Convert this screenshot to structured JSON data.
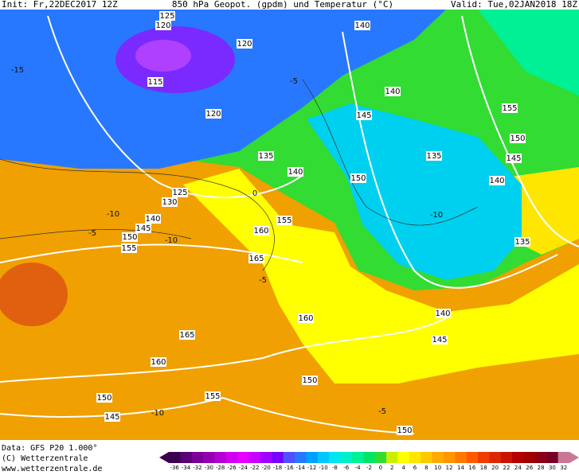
{
  "header": {
    "init": "Init: Fr,22DEC2017 12Z",
    "title": "850 hPa Geopot. (gpdm) und Temperatur (°C)",
    "valid": "Valid: Tue,02JAN2018 18Z"
  },
  "map": {
    "geopotential_labels": [
      125,
      120,
      140,
      120,
      115,
      140,
      155,
      120,
      145,
      150,
      135,
      145,
      140,
      135,
      150,
      140,
      125,
      130,
      140,
      155,
      145,
      160,
      150,
      135,
      155,
      165,
      140,
      160,
      145,
      165,
      160,
      150,
      150,
      155,
      145,
      150
    ],
    "temperature_labels": [
      -15,
      -5,
      -10,
      -5,
      -10,
      -5,
      -10,
      -5,
      0,
      -10
    ]
  },
  "legend": {
    "labels": [
      -36,
      -34,
      -32,
      -30,
      -28,
      -26,
      -24,
      -22,
      -20,
      -18,
      -16,
      -14,
      -12,
      -10,
      -8,
      -6,
      -4,
      -2,
      0,
      2,
      4,
      6,
      8,
      10,
      12,
      14,
      16,
      18,
      20,
      22,
      24,
      26,
      28,
      30,
      32
    ],
    "colors": [
      "#3c0050",
      "#5a0078",
      "#7a0096",
      "#9600b4",
      "#b400d2",
      "#d200f0",
      "#e600ff",
      "#c800ff",
      "#a000ff",
      "#7800ff",
      "#5050ff",
      "#2878ff",
      "#00a0ff",
      "#00c8ff",
      "#00e6f0",
      "#00f0c8",
      "#00f096",
      "#00e664",
      "#32dc32",
      "#c8f000",
      "#ffff00",
      "#ffe600",
      "#ffc800",
      "#ffaa00",
      "#ff9600",
      "#ff7800",
      "#ff5a00",
      "#f03c00",
      "#dc2800",
      "#c81400",
      "#b40000",
      "#a00000",
      "#8c0014",
      "#780028",
      "#c87896"
    ]
  },
  "footer": {
    "data": "Data: GFS P20 1.000°",
    "copyright": "(C) Wetterzentrale",
    "url": "www.wetterzentrale.de"
  }
}
